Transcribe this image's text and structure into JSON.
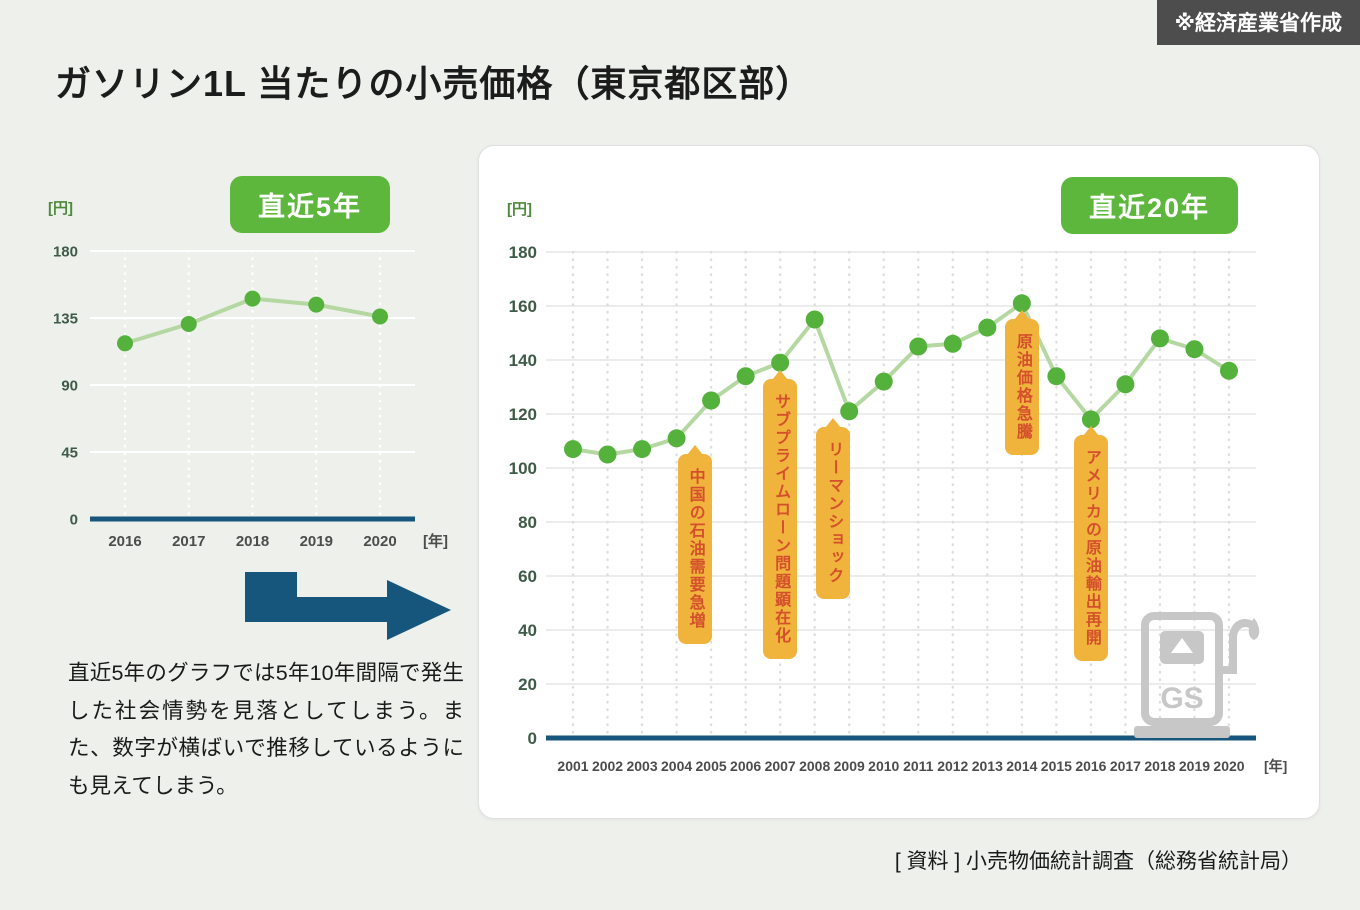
{
  "page": {
    "credit_badge": "※経済産業省作成",
    "title": "ガソリン1L 当たりの小売価格（東京都区部）",
    "note": "直近5年のグラフでは5年10年間隔で発生した社会情勢を見落としてしまう。また、数字が横ばいで推移しているようにも見えてしまう。",
    "source": "[ 資料 ] 小売物価統計調査（総務省統計局）"
  },
  "icons": {
    "gas_station_label": "GS"
  },
  "colors": {
    "accent_green": "#5eb73d",
    "axis": "#17567c",
    "tick_y": "#3e5b47",
    "tick_x": "#4c4c4c",
    "annotation_bg": "#f0b33c",
    "annotation_text": "#d4502c"
  },
  "chart_data": [
    {
      "type": "line",
      "title": "直近5年",
      "unit_y": "[円]",
      "unit_x": "[年]",
      "categories": [
        "2016",
        "2017",
        "2018",
        "2019",
        "2020"
      ],
      "values": [
        118,
        131,
        148,
        144,
        136
      ],
      "ylim": [
        0,
        180
      ],
      "yticks": [
        0,
        45,
        90,
        135,
        180
      ],
      "grid": true,
      "legend": "none",
      "line_color": "#b5d8a3",
      "point_color": "#54b23c"
    },
    {
      "type": "line",
      "title": "直近20年",
      "unit_y": "[円]",
      "unit_x": "[年]",
      "categories": [
        "2001",
        "2002",
        "2003",
        "2004",
        "2005",
        "2006",
        "2007",
        "2008",
        "2009",
        "2010",
        "2011",
        "2012",
        "2013",
        "2014",
        "2015",
        "2016",
        "2017",
        "2018",
        "2019",
        "2020"
      ],
      "values": [
        107,
        105,
        107,
        111,
        125,
        134,
        139,
        155,
        121,
        132,
        145,
        146,
        152,
        161,
        134,
        118,
        131,
        148,
        144,
        136
      ],
      "ylim": [
        0,
        180
      ],
      "yticks": [
        0,
        20,
        40,
        60,
        80,
        100,
        120,
        140,
        160,
        180
      ],
      "grid": true,
      "legend": "none",
      "line_color": "#b5d8a3",
      "point_color": "#54b23c",
      "annotations": [
        {
          "label": "中国の石油需要急増",
          "year": "2004",
          "dx": 18
        },
        {
          "label": "サブプライムローン問題顕在化",
          "year": "2007",
          "dx": 0
        },
        {
          "label": "リーマンショック",
          "year": "2009",
          "dx": -16
        },
        {
          "label": "原油価格急騰",
          "year": "2014",
          "dx": 0
        },
        {
          "label": "アメリカの原油輸出再開",
          "year": "2016",
          "dx": 0
        }
      ]
    }
  ]
}
